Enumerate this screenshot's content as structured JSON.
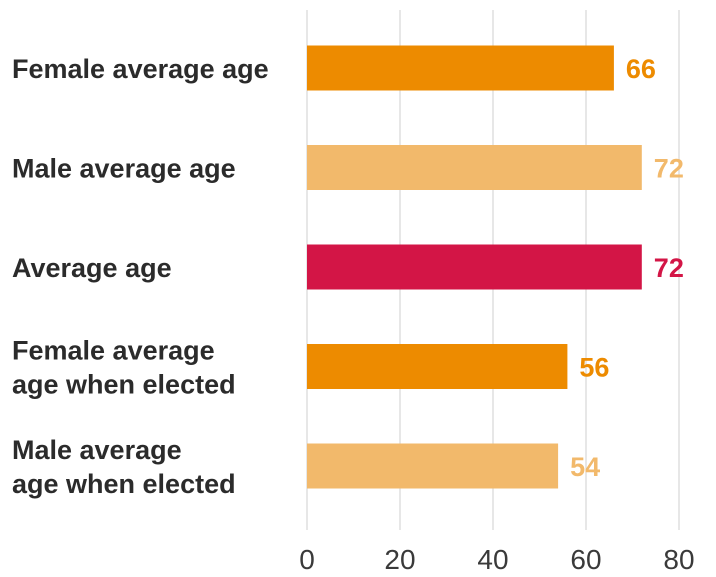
{
  "chart_data": {
    "type": "bar",
    "orientation": "horizontal",
    "categories": [
      [
        "Female average age"
      ],
      [
        "Male average age"
      ],
      [
        "Average age"
      ],
      [
        "Female average",
        "age when elected"
      ],
      [
        "Male average",
        "age when elected"
      ]
    ],
    "values": [
      66,
      72,
      72,
      56,
      54
    ],
    "value_labels": [
      "66",
      "72",
      "72",
      "56",
      "54"
    ],
    "colors": [
      "#ED8B00",
      "#F2B96B",
      "#D31546",
      "#ED8B00",
      "#F2B96B"
    ],
    "xlim": [
      0,
      80
    ],
    "xticks": [
      0,
      20,
      40,
      60,
      80
    ],
    "xtick_labels": [
      "0",
      "20",
      "40",
      "60",
      "80"
    ],
    "grid": "vertical",
    "title": "",
    "xlabel": "",
    "ylabel": ""
  }
}
